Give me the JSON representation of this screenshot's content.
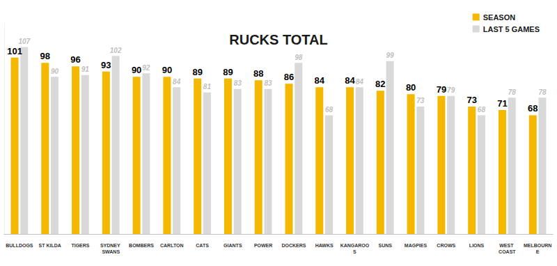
{
  "chart_data": {
    "type": "bar",
    "title": "RUCKS TOTAL",
    "categories": [
      "BULLDOGS",
      "ST KILDA",
      "TIGERS",
      "SYDNEY SWANS",
      "BOMBERS",
      "CARLTON",
      "CATS",
      "GIANTS",
      "POWER",
      "DOCKERS",
      "HAWKS",
      "KANGAROOS",
      "SUNS",
      "MAGPIES",
      "CROWS",
      "LIONS",
      "WEST COAST",
      "MELBOURNE"
    ],
    "series": [
      {
        "name": "SEASON",
        "color": "#f5b800",
        "values": [
          101,
          98,
          96,
          93,
          90,
          90,
          89,
          89,
          88,
          86,
          84,
          84,
          82,
          80,
          79,
          73,
          71,
          68
        ]
      },
      {
        "name": "LAST 5 GAMES",
        "color": "#d9d9d9",
        "values": [
          107,
          90,
          91,
          102,
          92,
          84,
          81,
          83,
          83,
          98,
          68,
          84,
          99,
          73,
          79,
          68,
          78,
          78
        ]
      }
    ],
    "ylim": [
      0,
      120
    ],
    "legend": "top-right",
    "data_labels": true,
    "tick_labels": "x",
    "grid": false
  }
}
